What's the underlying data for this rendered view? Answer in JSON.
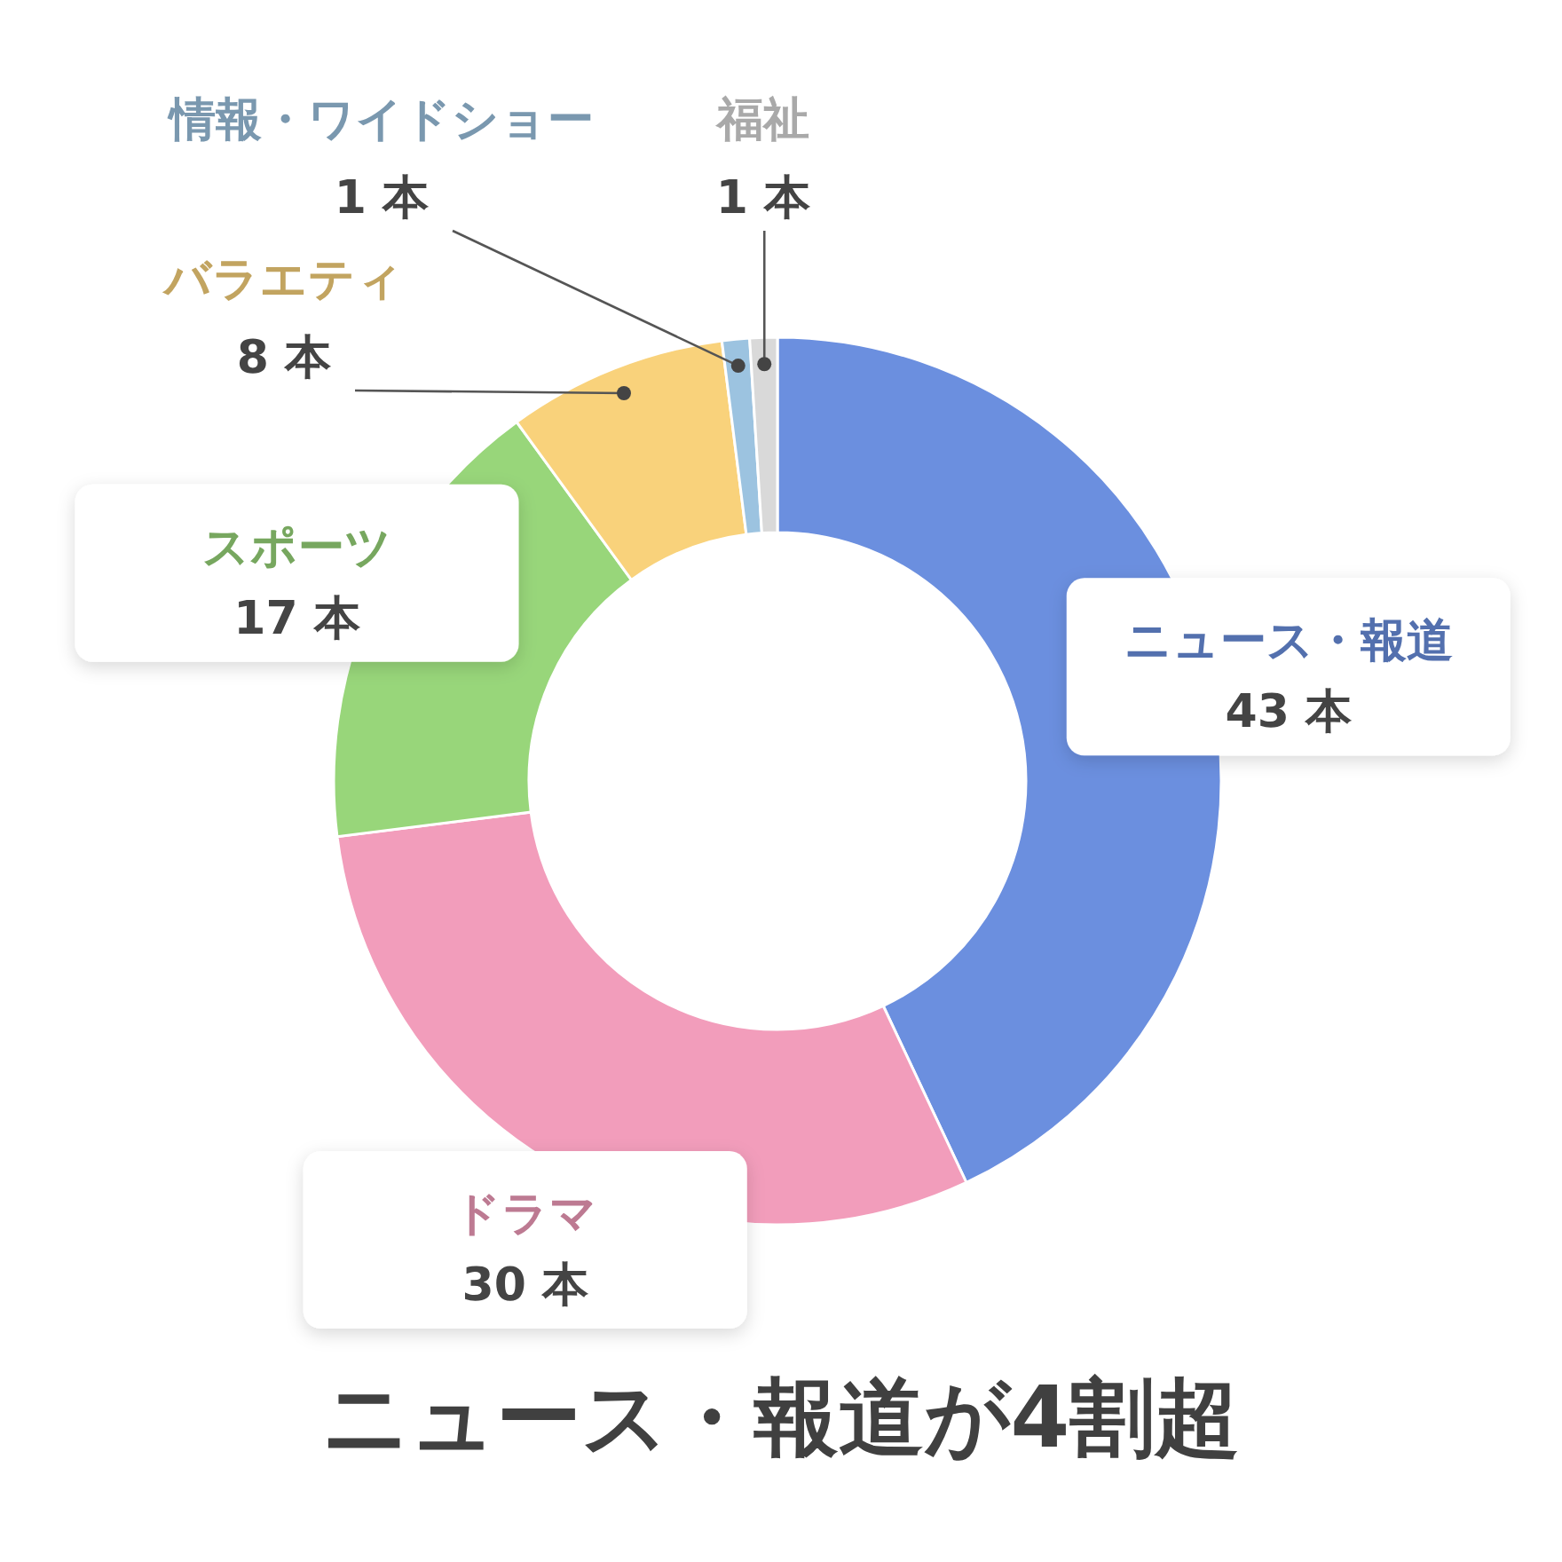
{
  "chart_data": {
    "type": "donut",
    "title": "ニュース・報道が4割超",
    "categories": [
      "ニュース・報道",
      "ドラマ",
      "スポーツ",
      "バラエティ",
      "情報・ワイドショー",
      "福祉"
    ],
    "values": [
      43,
      30,
      17,
      8,
      1,
      1
    ],
    "colors": [
      "#6b8fdf",
      "#f29dbb",
      "#98d67a",
      "#f9d27b",
      "#9cc3e0",
      "#d9d9d9"
    ],
    "value_labels": [
      "43 本",
      "30 本",
      "17 本",
      "8 本",
      "1 本",
      "1 本"
    ]
  }
}
